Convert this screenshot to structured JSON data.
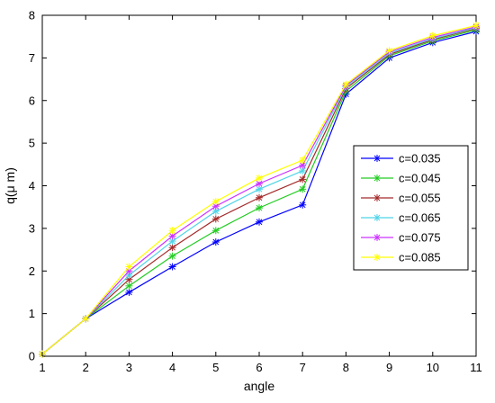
{
  "chart_data": {
    "type": "line",
    "title": "",
    "xlabel": "angle",
    "ylabel": "q(μ m)",
    "xlim": [
      1,
      11
    ],
    "ylim": [
      0,
      8
    ],
    "x": [
      1,
      2,
      3,
      4,
      5,
      6,
      7,
      8,
      9,
      10,
      11
    ],
    "xticks": [
      "1",
      "2",
      "3",
      "4",
      "5",
      "6",
      "7",
      "8",
      "9",
      "10",
      "11"
    ],
    "yticks": [
      "0",
      "1",
      "2",
      "3",
      "4",
      "5",
      "6",
      "7",
      "8"
    ],
    "grid": false,
    "legend_position": "right",
    "marker": "asterisk",
    "series": [
      {
        "name": "c=0.035",
        "color": "#0000ff",
        "values": [
          0.05,
          0.88,
          1.5,
          2.1,
          2.68,
          3.15,
          3.55,
          6.15,
          7.0,
          7.36,
          7.62
        ]
      },
      {
        "name": "c=0.045",
        "color": "#22cc22",
        "values": [
          0.05,
          0.88,
          1.65,
          2.35,
          2.95,
          3.48,
          3.92,
          6.22,
          7.05,
          7.4,
          7.66
        ]
      },
      {
        "name": "c=0.055",
        "color": "#a52a2a",
        "values": [
          0.05,
          0.88,
          1.8,
          2.55,
          3.22,
          3.72,
          4.15,
          6.28,
          7.08,
          7.43,
          7.69
        ]
      },
      {
        "name": "c=0.065",
        "color": "#4fd4e8",
        "values": [
          0.05,
          0.88,
          1.9,
          2.7,
          3.4,
          3.92,
          4.35,
          6.32,
          7.11,
          7.45,
          7.71
        ]
      },
      {
        "name": "c=0.075",
        "color": "#cc33ff",
        "values": [
          0.05,
          0.88,
          2.0,
          2.82,
          3.52,
          4.05,
          4.48,
          6.35,
          7.14,
          7.48,
          7.73
        ]
      },
      {
        "name": "c=0.085",
        "color": "#ffff00",
        "values": [
          0.05,
          0.88,
          2.1,
          2.95,
          3.63,
          4.18,
          4.6,
          6.38,
          7.17,
          7.52,
          7.76
        ]
      }
    ]
  }
}
